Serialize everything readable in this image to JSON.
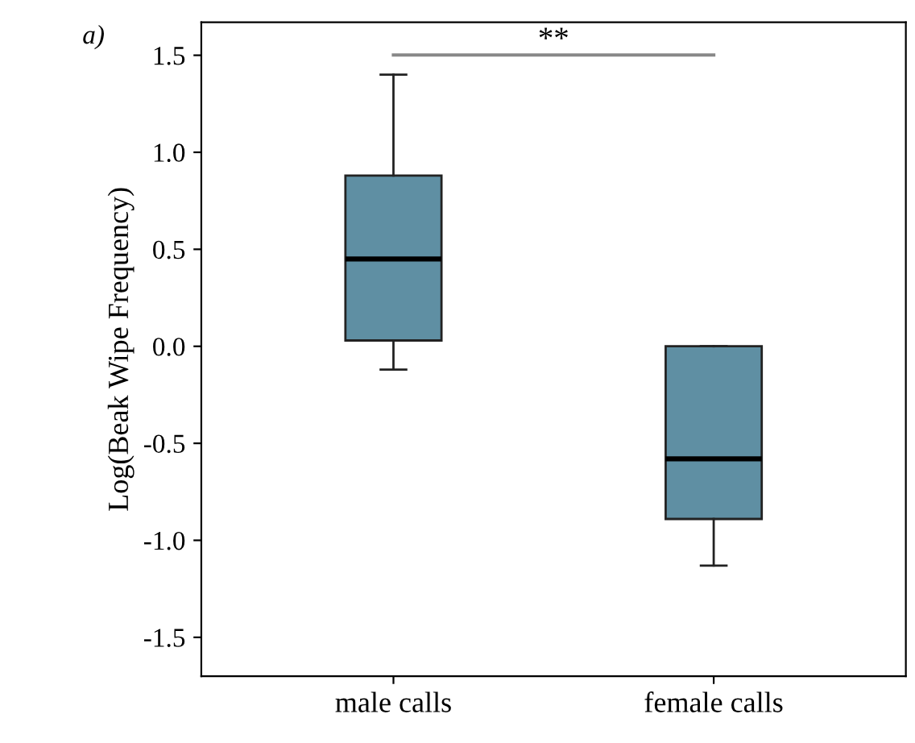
{
  "chart_data": {
    "type": "box",
    "ylabel": "Log(Beak Wipe Frequency)",
    "categories": [
      "male calls",
      "female calls"
    ],
    "boxes": [
      {
        "low": -0.12,
        "q1": 0.03,
        "median": 0.45,
        "q3": 0.88,
        "high": 1.4
      },
      {
        "low": -1.13,
        "q1": -0.89,
        "median": -0.58,
        "q3": 0.0,
        "high": 0.0
      }
    ],
    "color": "#5f8fa3",
    "ylim": [
      -1.7,
      1.67
    ],
    "yticks": [
      {
        "value": -1.5,
        "label": "-1.5"
      },
      {
        "value": -1.0,
        "label": "-1.0"
      },
      {
        "value": -0.5,
        "label": "-0.5"
      },
      {
        "value": 0.0,
        "label": "0.0"
      },
      {
        "value": 0.5,
        "label": "0.5"
      },
      {
        "value": 1.0,
        "label": "1.0"
      },
      {
        "value": 1.5,
        "label": "1.5"
      }
    ],
    "grid": false,
    "annotations": [
      "a)",
      "**"
    ]
  }
}
